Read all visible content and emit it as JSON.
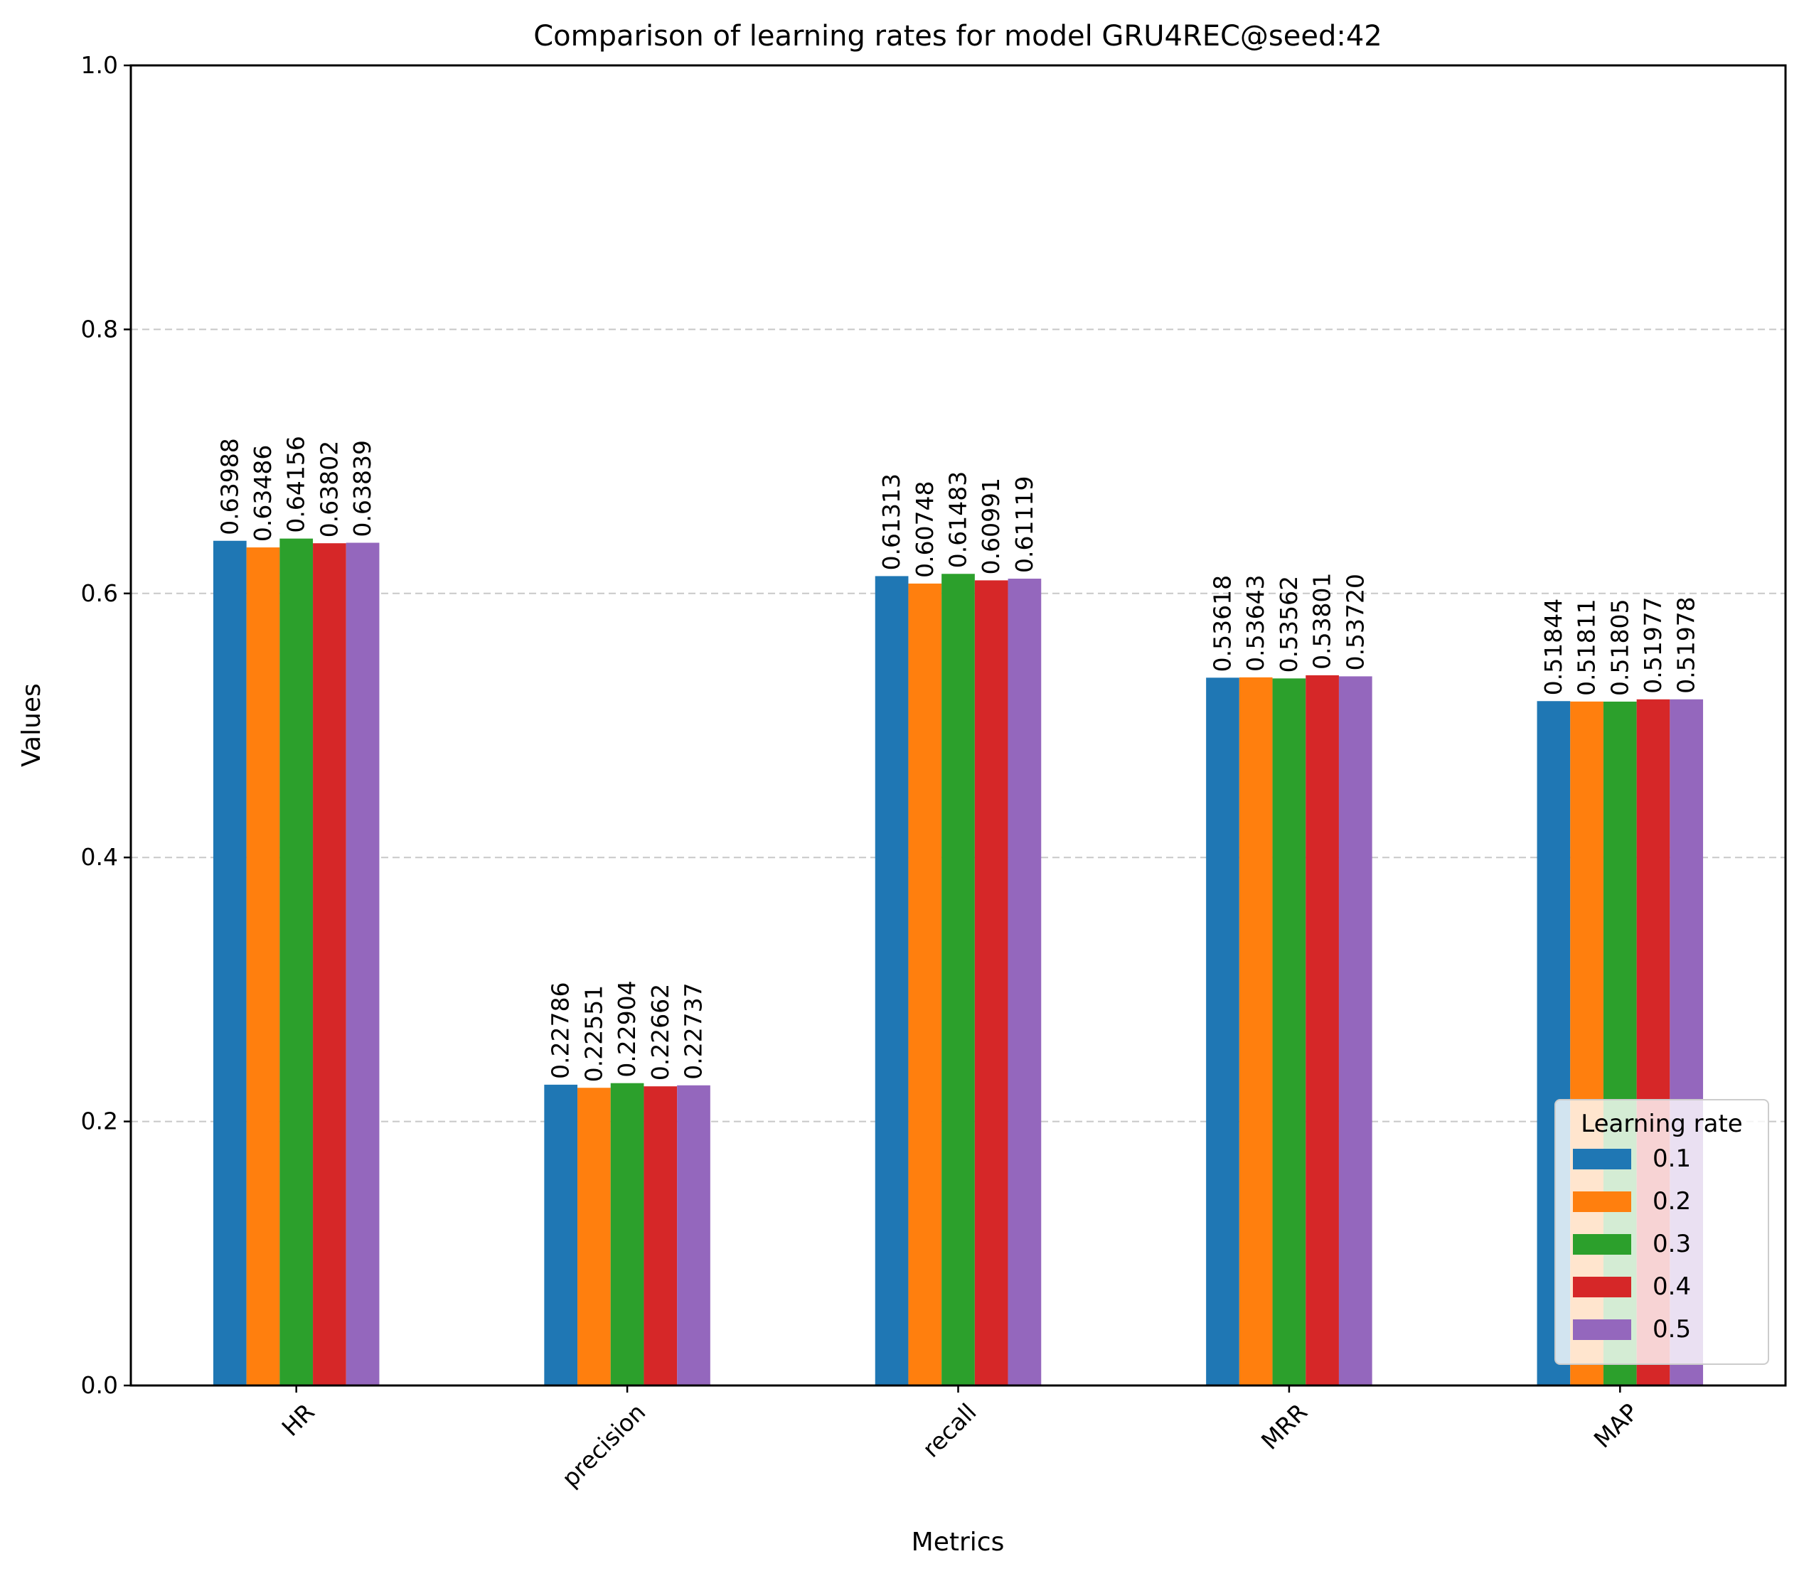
{
  "chart_data": {
    "type": "bar",
    "title": "Comparison of learning rates for model GRU4REC@seed:42",
    "xlabel": "Metrics",
    "ylabel": "Values",
    "ylim": [
      0,
      1.0
    ],
    "yticks": [
      "0.0",
      "0.2",
      "0.4",
      "0.6",
      "0.8",
      "1.0"
    ],
    "grid": "horizontal dashed",
    "categories": [
      "HR",
      "precision",
      "recall",
      "MRR",
      "MAP"
    ],
    "legend": {
      "title": "Learning rate",
      "placement": "lower right"
    },
    "series": [
      {
        "name": "0.1",
        "color": "#1f77b4",
        "values": [
          0.63988,
          0.22786,
          0.61313,
          0.53618,
          0.51844
        ],
        "labels": [
          "0.63988",
          "0.22786",
          "0.61313",
          "0.53618",
          "0.51844"
        ]
      },
      {
        "name": "0.2",
        "color": "#ff7f0e",
        "values": [
          0.63486,
          0.22551,
          0.60748,
          0.53643,
          0.51811
        ],
        "labels": [
          "0.63486",
          "0.22551",
          "0.60748",
          "0.53643",
          "0.51811"
        ]
      },
      {
        "name": "0.3",
        "color": "#2ca02c",
        "values": [
          0.64156,
          0.22904,
          0.61483,
          0.53562,
          0.51805
        ],
        "labels": [
          "0.64156",
          "0.22904",
          "0.61483",
          "0.53562",
          "0.51805"
        ]
      },
      {
        "name": "0.4",
        "color": "#d62728",
        "values": [
          0.63802,
          0.22662,
          0.60991,
          0.53801,
          0.51977
        ],
        "labels": [
          "0.63802",
          "0.22662",
          "0.60991",
          "0.53801",
          "0.51977"
        ]
      },
      {
        "name": "0.5",
        "color": "#9467bd",
        "values": [
          0.63839,
          0.22737,
          0.61119,
          0.5372,
          0.51978
        ],
        "labels": [
          "0.63839",
          "0.22737",
          "0.61119",
          "0.53720",
          "0.51978"
        ]
      }
    ]
  }
}
